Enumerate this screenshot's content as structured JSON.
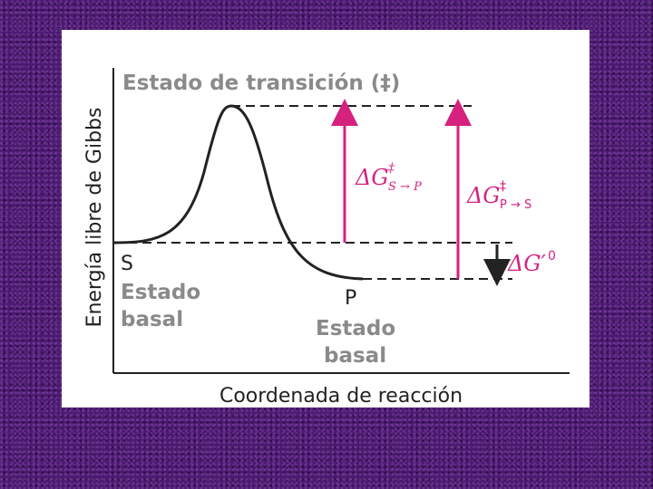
{
  "diagram": {
    "title": "Estado de transición (‡)",
    "y_axis_label": "Energía libre de Gibbs",
    "x_axis_label": "Coordenada de reacción",
    "substrate": {
      "symbol": "S",
      "lines": [
        "Estado",
        "basal"
      ]
    },
    "product": {
      "symbol": "P",
      "lines": [
        "Estado",
        "basal"
      ]
    },
    "forward_barrier": {
      "symbol": "ΔG",
      "superscript": "‡",
      "subscript": "S → P"
    },
    "reverse_barrier": {
      "symbol": "ΔG",
      "superscript": "‡",
      "subscript": "P → S"
    },
    "standard_change": {
      "symbol": "ΔG′",
      "superscript": "0"
    }
  }
}
